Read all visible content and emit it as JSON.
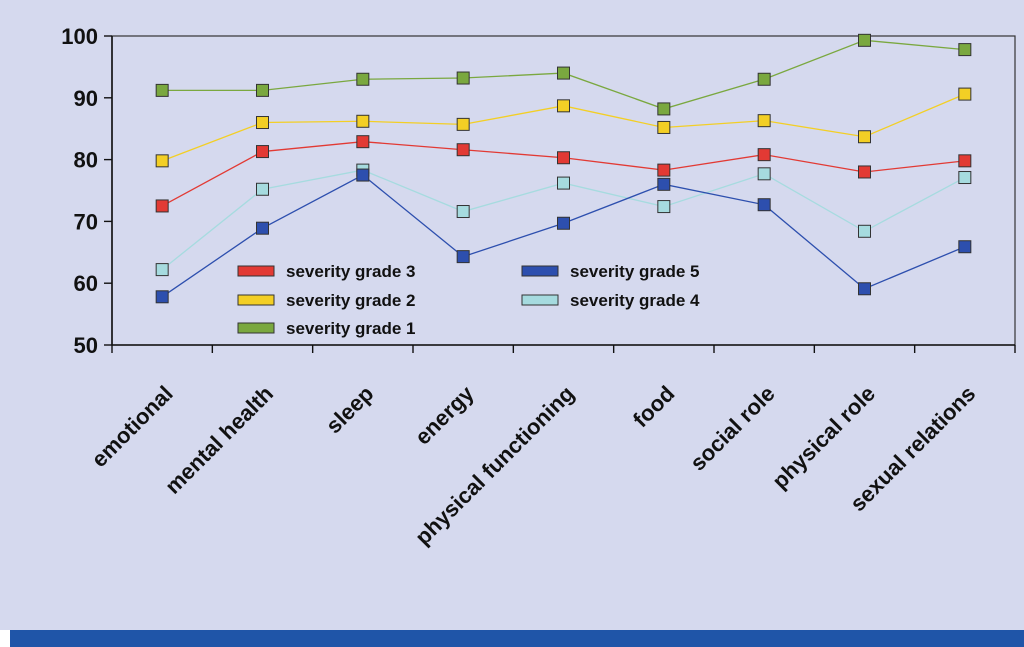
{
  "chart_data": {
    "type": "line",
    "categories": [
      "emotional",
      "mental health",
      "sleep",
      "energy",
      "physical functioning",
      "food",
      "social role",
      "physical role",
      "sexual relations"
    ],
    "ylim": [
      50,
      100
    ],
    "yticks": [
      50,
      60,
      70,
      80,
      90,
      100
    ],
    "grid": false,
    "legend_position": "inside-bottom-left",
    "series": [
      {
        "name": "severity grade 1",
        "color": "#7aa83f",
        "values": [
          91.2,
          91.2,
          93,
          93.2,
          94,
          88.2,
          93,
          99.3,
          97.8
        ]
      },
      {
        "name": "severity grade 2",
        "color": "#f3cf25",
        "values": [
          79.8,
          86,
          86.2,
          85.7,
          88.7,
          85.2,
          86.3,
          83.7,
          90.6
        ]
      },
      {
        "name": "severity grade 3",
        "color": "#e23a34",
        "values": [
          72.5,
          81.3,
          82.9,
          81.6,
          80.3,
          78.3,
          80.8,
          78,
          79.8
        ]
      },
      {
        "name": "severity grade 4",
        "color": "#a6dbdf",
        "values": [
          62.2,
          75.2,
          78.3,
          71.6,
          76.2,
          72.4,
          77.7,
          68.4,
          77.1
        ]
      },
      {
        "name": "severity grade 5",
        "color": "#2d4fae",
        "values": [
          57.8,
          68.9,
          77.5,
          64.3,
          69.7,
          76,
          72.7,
          59.1,
          65.9
        ]
      }
    ],
    "legend_order": [
      "severity grade 3",
      "severity grade 5",
      "severity grade 2",
      "severity grade 4",
      "severity grade 1"
    ]
  }
}
